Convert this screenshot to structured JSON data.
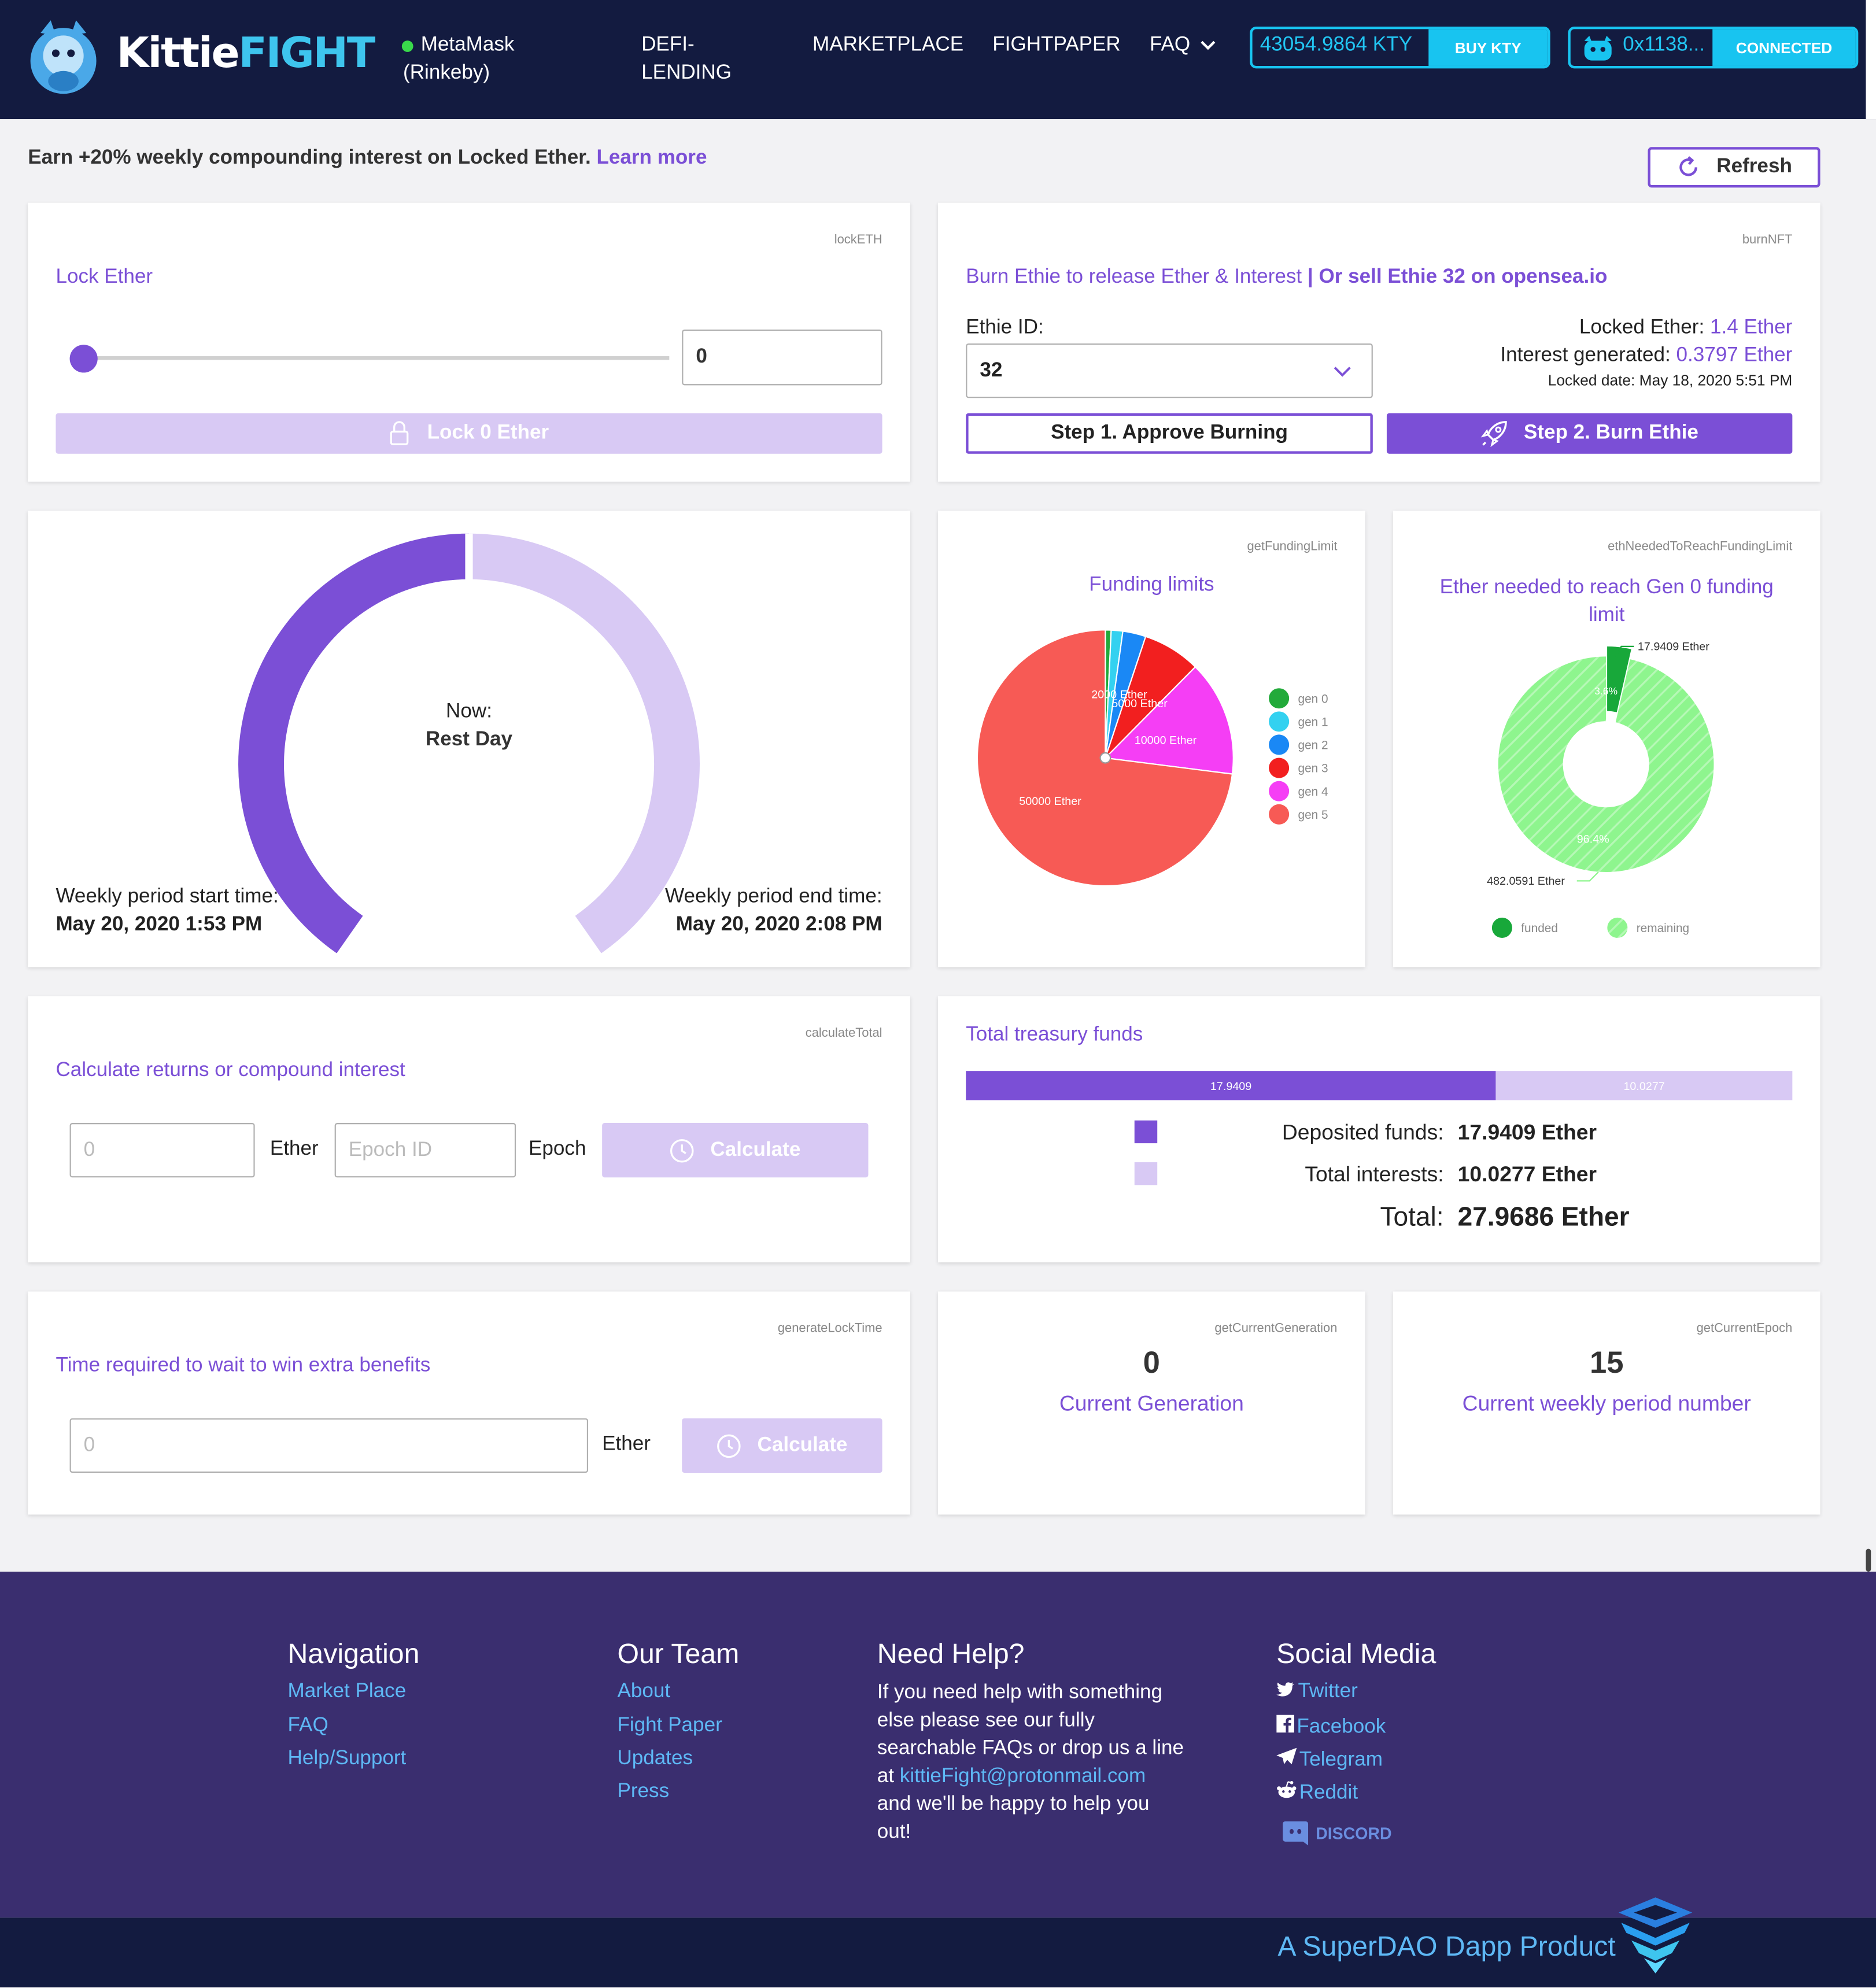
{
  "header": {
    "logo_kittie": "Kittie",
    "logo_fight": "FIGHT",
    "network_line1": "MetaMask",
    "network_line2": "(Rinkeby)",
    "nav": [
      "DEFI-",
      "LENDING",
      "MARKETPLACE",
      "FIGHTPAPER",
      "FAQ"
    ],
    "kty_balance": "43054.9864 KTY",
    "buy_kty": "BUY KTY",
    "wallet": "0x1138...",
    "connected": "CONNECTED"
  },
  "banner": {
    "text": "Earn +20% weekly compounding interest on Locked Ether.",
    "link": "Learn more",
    "refresh": "Refresh"
  },
  "lock": {
    "tag": "lockETH",
    "title": "Lock Ether",
    "amount": "0",
    "button": "Lock 0 Ether",
    "slider_fraction": 0
  },
  "burn": {
    "tag": "burnNFT",
    "title": "Burn Ethie to release Ether & Interest",
    "title_sep": "|",
    "sell_link": "Or sell Ethie 32 on opensea.io",
    "ethie_label": "Ethie ID:",
    "ethie_id": "32",
    "locked_label": "Locked Ether:",
    "locked_value": "1.4 Ether",
    "interest_label": "Interest generated:",
    "interest_value": "0.3797 Ether",
    "locked_date_label": "Locked date:",
    "locked_date": "May 18, 2020 5:51 PM",
    "step1": "Step 1. Approve Burning",
    "step2": "Step 2. Burn Ethie"
  },
  "period": {
    "now_label": "Now:",
    "now_value": "Rest Day",
    "progress_fraction": 0.5,
    "start_label": "Weekly period start time:",
    "start_value": "May 20, 2020 1:53 PM",
    "end_label": "Weekly period end time:",
    "end_value": "May 20, 2020 2:08 PM"
  },
  "funding": {
    "tag": "getFundingLimit",
    "title": "Funding limits",
    "colors": [
      "#22aa3a",
      "#33d1f0",
      "#1a88f5",
      "#f21f1f",
      "#f53ef5",
      "#f75a55"
    ],
    "labels": {
      "a": "2000 Ether",
      "b": "5000 Ether",
      "c": "10000 Ether",
      "d": "50000 Ether"
    }
  },
  "chart_data": {
    "type": "pie",
    "title": "Funding limits",
    "categories": [
      "gen 0",
      "gen 1",
      "gen 2",
      "gen 3",
      "gen 4",
      "gen 5"
    ],
    "values": [
      500,
      1000,
      2000,
      5000,
      10000,
      50000
    ],
    "legend": "right"
  },
  "needed": {
    "tag": "ethNeededToReachFundingLimit",
    "title_line1": "Ether needed to reach Gen 0 funding",
    "title_line2": "limit",
    "funded_label": "17.9409 Ether",
    "remaining_label": "482.0591 Ether",
    "funded_pct": "3.6%",
    "remaining_pct": "96.4%",
    "funded_value": 17.9409,
    "remaining_value": 482.0591,
    "legend_funded": "funded",
    "legend_remaining": "remaining",
    "funded_color": "#18a83a",
    "remaining_color": "#8ef58e"
  },
  "calculate": {
    "tag": "calculateTotal",
    "title": "Calculate returns or compound interest",
    "ether_placeholder": "0",
    "ether_label": "Ether",
    "epoch_placeholder": "Epoch ID",
    "epoch_label": "Epoch",
    "button": "Calculate"
  },
  "treasury": {
    "title": "Total treasury funds",
    "deposited_bar": "17.9409",
    "interest_bar": "10.0277",
    "deposited_value": 17.9409,
    "interest_value": 10.0277,
    "deposited_label": "Deposited funds:",
    "deposited_text": "17.9409 Ether",
    "interest_label": "Total interests:",
    "interest_text": "10.0277 Ether",
    "total_label": "Total:",
    "total_text": "27.9686 Ether"
  },
  "locktime": {
    "tag": "generateLockTime",
    "title": "Time required to wait to win extra benefits",
    "placeholder": "0",
    "ether_label": "Ether",
    "button": "Calculate"
  },
  "generation": {
    "tag": "getCurrentGeneration",
    "value": "0",
    "label": "Current Generation"
  },
  "epoch": {
    "tag": "getCurrentEpoch",
    "value": "15",
    "label": "Current weekly period number"
  },
  "footer": {
    "nav_title": "Navigation",
    "nav_links": [
      "Market Place",
      "FAQ",
      "Help/Support"
    ],
    "team_title": "Our Team",
    "team_links": [
      "About",
      "Fight Paper",
      "Updates",
      "Press"
    ],
    "help_title": "Need Help?",
    "help_lines": [
      "If you need help with something",
      "else please see our fully",
      "searchable FAQs or drop us a line",
      "at"
    ],
    "help_email": "kittieFight@protonmail.com",
    "help_lines2": [
      "and we'll be happy to help you",
      "out!"
    ],
    "social_title": "Social Media",
    "social_links": [
      "Twitter",
      "Facebook",
      "Telegram",
      "Reddit"
    ],
    "discord": "DISCORD",
    "superdao": "A SuperDAO Dapp Product"
  },
  "colors": {
    "purple": "#7b4fd6",
    "light_purple": "#d8c9f4",
    "header_bg": "#131b40",
    "footer_bg": "#3a2e6f",
    "cyan": "#18c4f0"
  }
}
